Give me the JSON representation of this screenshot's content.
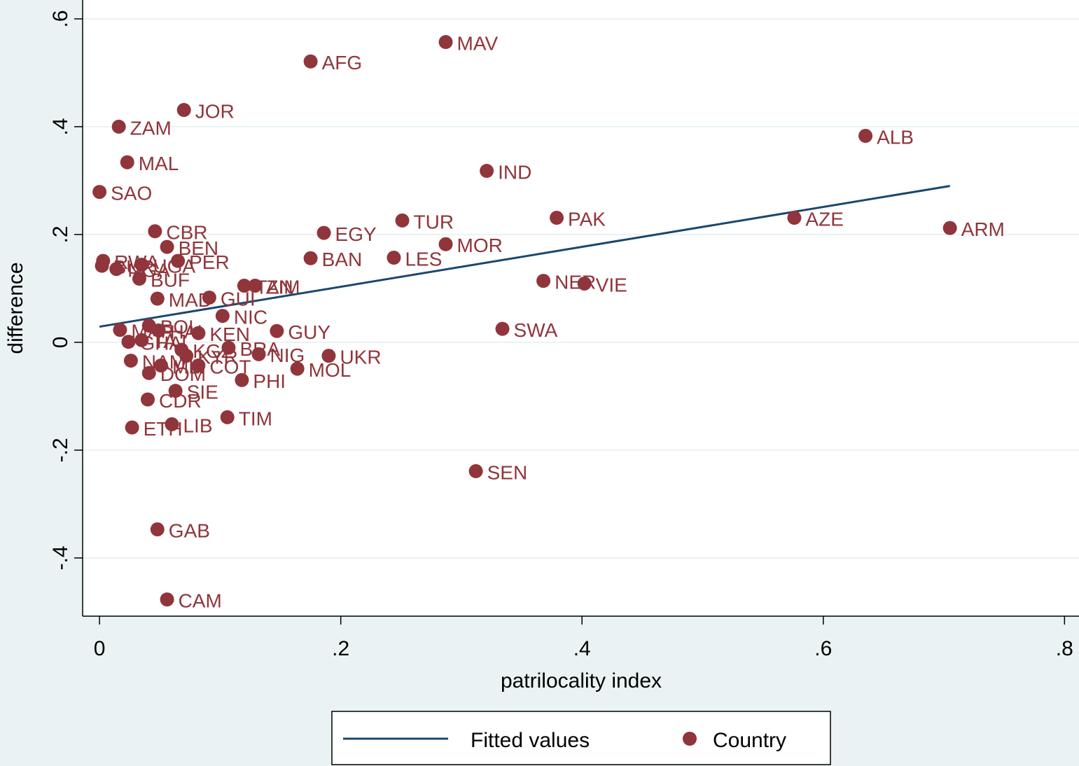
{
  "chart_data": {
    "type": "scatter",
    "xlabel": "patrilocality index",
    "ylabel": "difference",
    "xlim": [
      -0.014,
      0.812
    ],
    "ylim": [
      -0.508,
      0.635
    ],
    "xticks": [
      0,
      {
        "value": 0.2,
        "label": ".2"
      },
      {
        "value": 0.4,
        "label": ".4"
      },
      {
        "value": 0.6,
        "label": ".6"
      },
      {
        "value": 0.8,
        "label": ".8"
      }
    ],
    "yticks": [
      {
        "value": -0.4,
        "label": "-.4"
      },
      {
        "value": -0.2,
        "label": "-.2"
      },
      0,
      {
        "value": 0.2,
        "label": ".2"
      },
      {
        "value": 0.4,
        "label": ".4"
      },
      {
        "value": 0.6,
        "label": ".6"
      }
    ],
    "grid": true,
    "legend": "bottom",
    "series": [
      {
        "name": "Fitted values",
        "type": "line",
        "color": "#1a476f",
        "x": [
          0,
          0.705
        ],
        "values": [
          0.029,
          0.29
        ]
      },
      {
        "name": "Country",
        "type": "scatter",
        "color": "#90353b",
        "labels": [
          "MAV",
          "AFG",
          "JOR",
          "ZAM",
          "ALB",
          "MAL",
          "IND",
          "SAO",
          "PAK",
          "AZE",
          "TUR",
          "ARM",
          "CBR",
          "EGY",
          "MOR",
          "BEN",
          "BAN",
          "LES",
          "RWA",
          "PER",
          "BUR",
          "NGA",
          "UGA",
          "BUF",
          "NER",
          "VIE",
          "TAN",
          "ZIM",
          "MAD",
          "GUI",
          "NIC",
          "GUY",
          "SWA",
          "MAR",
          "BOL",
          "HAI",
          "KEN",
          "GHA",
          "TAJ",
          "KGZ",
          "KYR",
          "BRA",
          "NIG",
          "UKR",
          "NAM",
          "MLI",
          "COT",
          "DOM",
          "MOL",
          "PHI",
          "SIE",
          "CDR",
          "TIM",
          "LIB",
          "ETH",
          "SEN",
          "GAB",
          "CAM"
        ],
        "x": [
          0.287,
          0.175,
          0.07,
          0.016,
          0.635,
          0.023,
          0.321,
          0,
          0.379,
          0.576,
          0.251,
          0.705,
          0.046,
          0.186,
          0.287,
          0.056,
          0.175,
          0.244,
          0.003,
          0.065,
          0.002,
          0.014,
          0.035,
          0.033,
          0.368,
          0.402,
          0.12,
          0.129,
          0.048,
          0.091,
          0.102,
          0.147,
          0.334,
          0.017,
          0.041,
          0.049,
          0.082,
          0.024,
          0.035,
          0.068,
          0.072,
          0.107,
          0.132,
          0.19,
          0.026,
          0.051,
          0.082,
          0.041,
          0.164,
          0.118,
          0.063,
          0.04,
          0.106,
          0.06,
          0.027,
          0.312,
          0.048,
          0.056
        ],
        "values": [
          0.557,
          0.521,
          0.431,
          0.4,
          0.383,
          0.334,
          0.318,
          0.279,
          0.231,
          0.231,
          0.226,
          0.212,
          0.206,
          0.203,
          0.182,
          0.177,
          0.156,
          0.157,
          0.151,
          0.151,
          0.142,
          0.136,
          0.144,
          0.118,
          0.114,
          0.109,
          0.105,
          0.105,
          0.081,
          0.083,
          0.049,
          0.021,
          0.025,
          0.023,
          0.031,
          0.022,
          0.017,
          0.001,
          0.004,
          -0.014,
          -0.025,
          -0.01,
          -0.022,
          -0.025,
          -0.034,
          -0.043,
          -0.043,
          -0.057,
          -0.049,
          -0.07,
          -0.09,
          -0.106,
          -0.139,
          -0.152,
          -0.158,
          -0.239,
          -0.347,
          -0.477
        ]
      }
    ]
  }
}
